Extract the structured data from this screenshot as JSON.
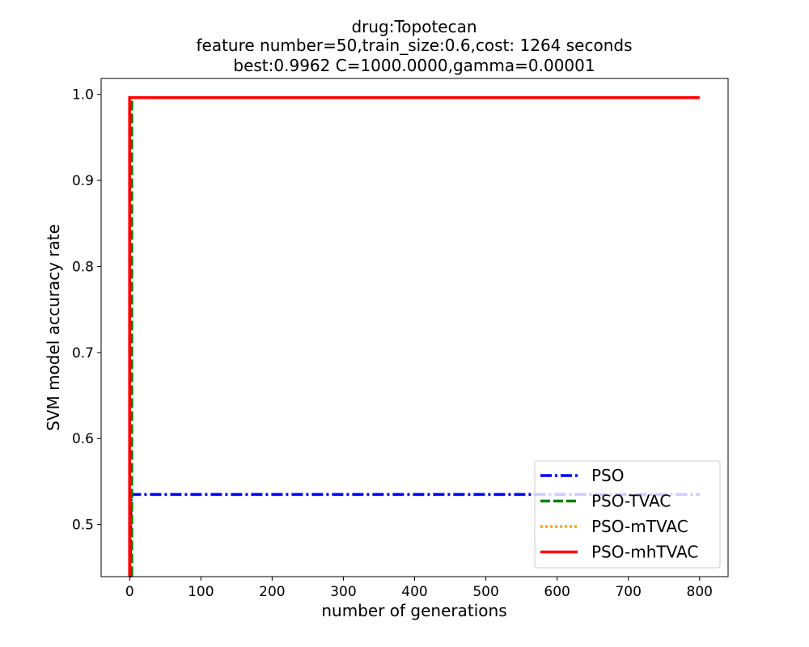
{
  "chart_data": {
    "type": "line",
    "title_lines": [
      "drug:Topotecan",
      "feature number=50,train_size:0.6,cost: 1264 seconds",
      "best:0.9962  C=1000.0000,gamma=0.00001"
    ],
    "xlabel": "number of generations",
    "ylabel": "SVM model accuracy rate",
    "xlim": [
      -40,
      840
    ],
    "ylim": [
      0.4395,
      1.0185
    ],
    "xticks": [
      0,
      100,
      200,
      300,
      400,
      500,
      600,
      700,
      800
    ],
    "yticks": [
      0.5,
      0.6,
      0.7,
      0.8,
      0.9,
      1.0
    ],
    "ytick_labels": [
      "0.5",
      "0.6",
      "0.7",
      "0.8",
      "0.9",
      "1.0"
    ],
    "grid": false,
    "legend_position": "lower-right",
    "series": [
      {
        "name": "PSO",
        "color": "#0000ff",
        "style": "dashdot",
        "x": [
          0,
          0.5,
          2,
          800
        ],
        "y": [
          0.44,
          0.44,
          0.535,
          0.535
        ]
      },
      {
        "name": "PSO-TVAC",
        "color": "#008000",
        "style": "dashed",
        "x": [
          3,
          3,
          800
        ],
        "y": [
          0.44,
          0.9962,
          0.9962
        ]
      },
      {
        "name": "PSO-mTVAC",
        "color": "#ffa500",
        "style": "dotted",
        "x": [
          0,
          0,
          800
        ],
        "y": [
          0.44,
          0.9962,
          0.9962
        ]
      },
      {
        "name": "PSO-mhTVAC",
        "color": "#ff0000",
        "style": "solid",
        "x": [
          0,
          0,
          800
        ],
        "y": [
          0.44,
          0.9962,
          0.9962
        ]
      }
    ]
  }
}
